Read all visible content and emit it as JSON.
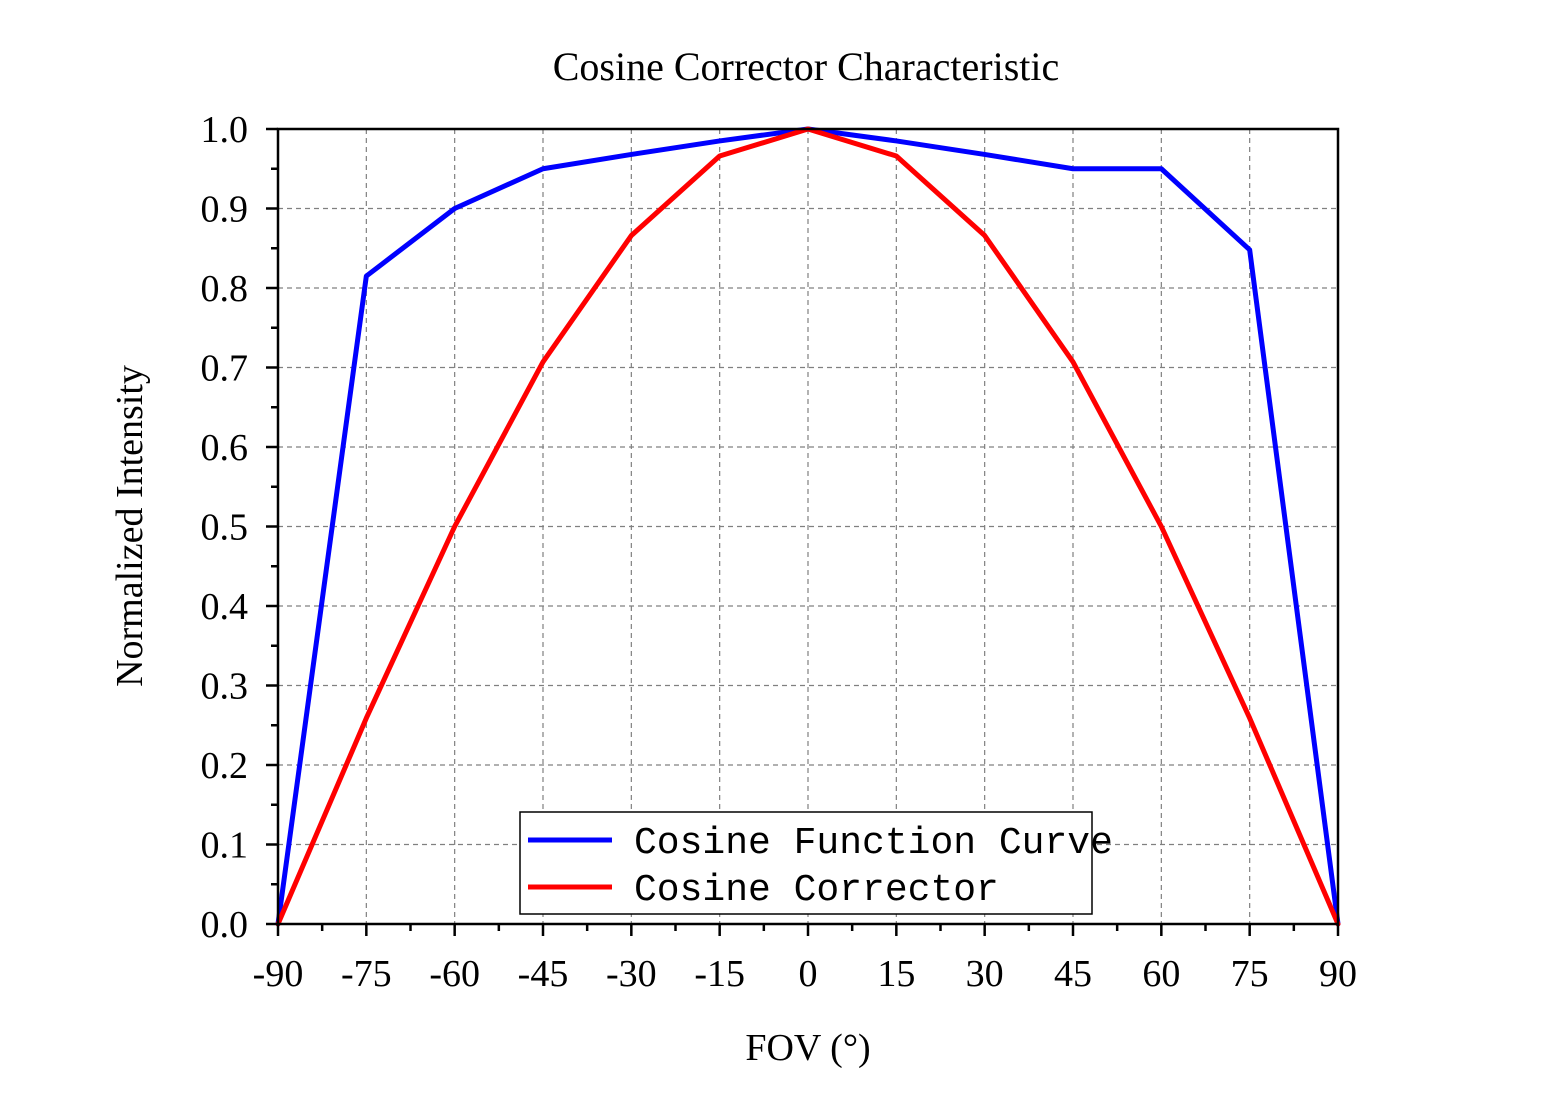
{
  "chart_data": {
    "type": "line",
    "title": "Cosine Corrector Characteristic",
    "xlabel": "FOV (°)",
    "ylabel": "Normalized Intensity",
    "xlim": [
      -90,
      90
    ],
    "ylim": [
      0,
      1.0
    ],
    "x_ticks": [
      "-90",
      "-75",
      "-60",
      "-45",
      "-30",
      "-15",
      "0",
      "15",
      "30",
      "45",
      "60",
      "75",
      "90"
    ],
    "y_ticks": [
      "0.0",
      "0.1",
      "0.2",
      "0.3",
      "0.4",
      "0.5",
      "0.6",
      "0.7",
      "0.8",
      "0.9",
      "1.0"
    ],
    "grid": true,
    "legend_position": "bottom-center",
    "x": [
      -90,
      -75,
      -60,
      -45,
      -30,
      -15,
      0,
      15,
      30,
      45,
      60,
      75,
      90
    ],
    "series": [
      {
        "name": "Cosine Function Curve",
        "color": "#0000ff",
        "values": [
          0.0,
          0.815,
          0.9,
          0.95,
          0.968,
          0.985,
          1.0,
          0.985,
          0.968,
          0.95,
          0.95,
          0.848,
          0.0
        ]
      },
      {
        "name": "Cosine Corrector",
        "color": "#ff0000",
        "values": [
          0.0,
          0.259,
          0.5,
          0.707,
          0.866,
          0.966,
          1.0,
          0.966,
          0.866,
          0.707,
          0.5,
          0.259,
          0.0
        ]
      }
    ]
  }
}
